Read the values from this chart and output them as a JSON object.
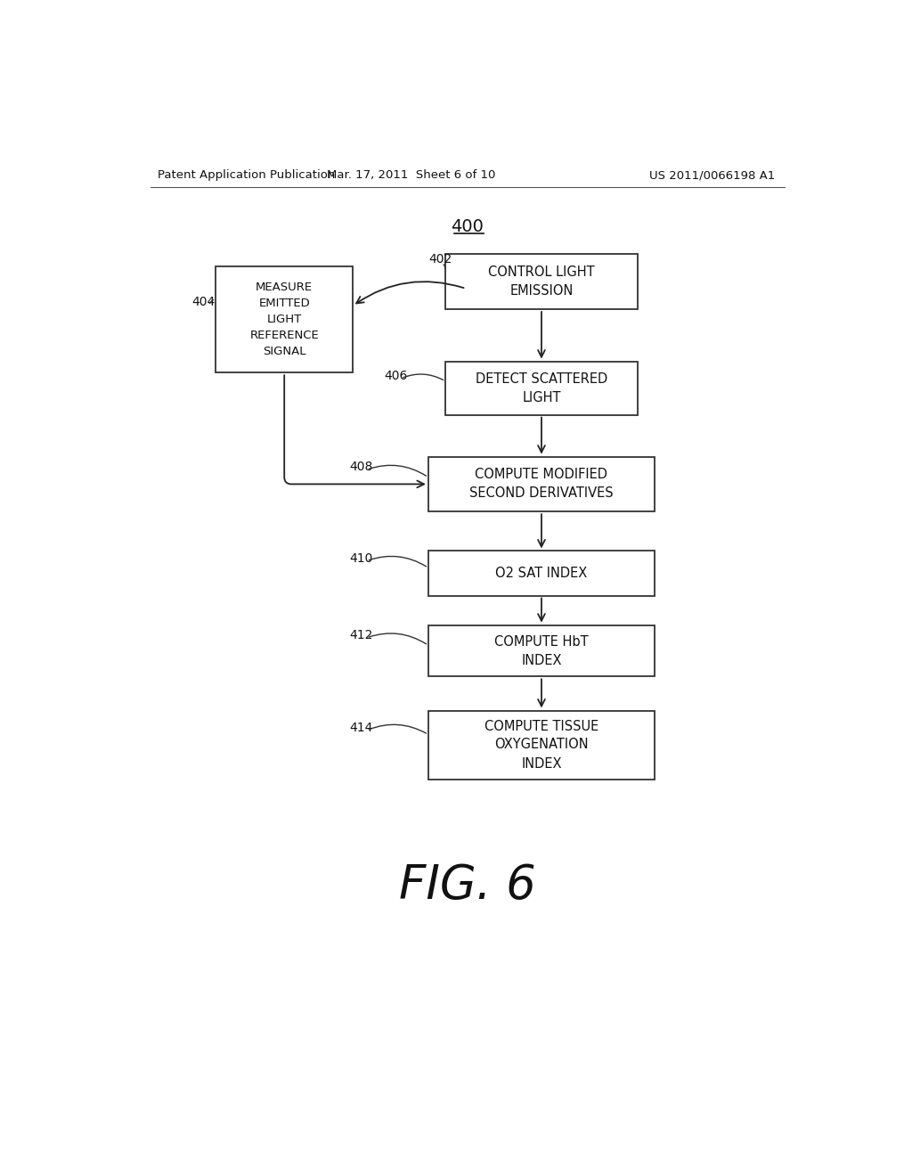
{
  "background_color": "#ffffff",
  "header_left": "Patent Application Publication",
  "header_center": "Mar. 17, 2011  Sheet 6 of 10",
  "header_right": "US 2011/0066198 A1",
  "figure_label": "FIG. 6",
  "diagram_label": "400"
}
